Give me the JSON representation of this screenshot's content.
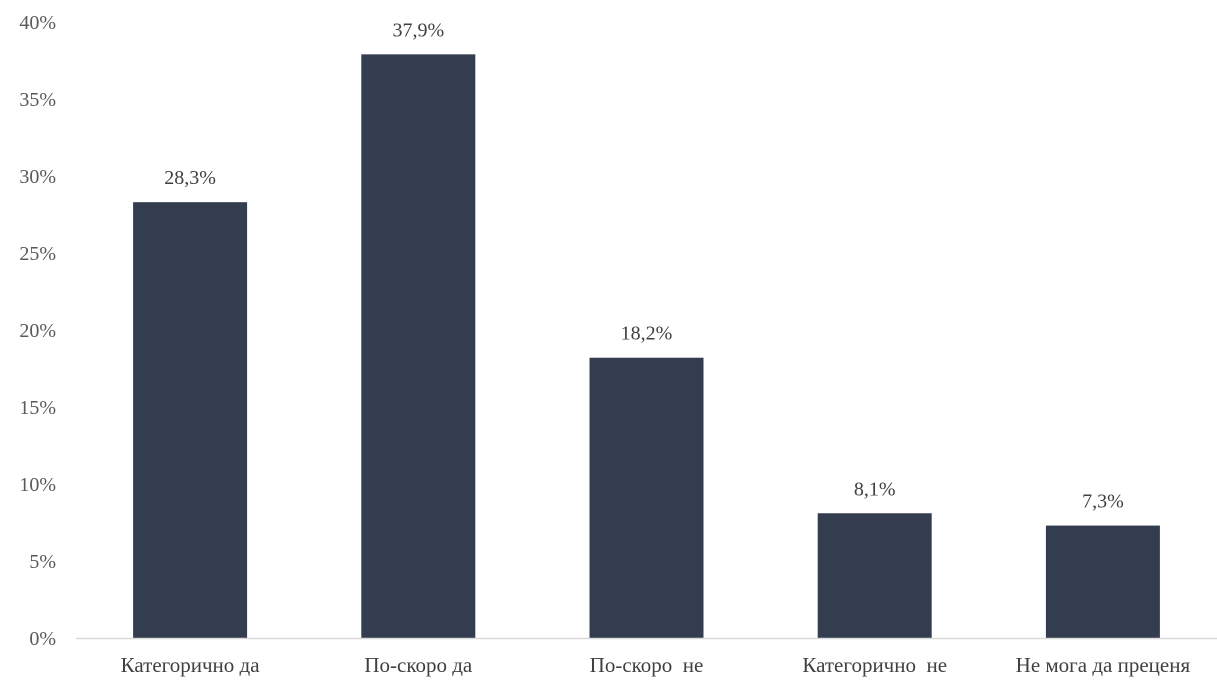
{
  "chart_data": {
    "type": "bar",
    "categories": [
      "Категорично да",
      "По-скоро да",
      "По-скоро  не",
      "Категорично  не",
      "Не мога да преценя"
    ],
    "values": [
      28.3,
      37.9,
      18.2,
      8.1,
      7.3
    ],
    "data_labels": [
      "28,3%",
      "37,9%",
      "18,2%",
      "8,1%",
      "7,3%"
    ],
    "y_ticks": [
      0,
      5,
      10,
      15,
      20,
      25,
      30,
      35,
      40
    ],
    "y_tick_labels": [
      "0%",
      "5%",
      "10%",
      "15%",
      "20%",
      "25%",
      "30%",
      "35%",
      "40%"
    ],
    "ylim": [
      0,
      40
    ],
    "title": "",
    "xlabel": "",
    "ylabel": "",
    "grid": false,
    "legend": "none",
    "bar_color": "#333d4f",
    "axis_color": "#d9d9d9"
  }
}
